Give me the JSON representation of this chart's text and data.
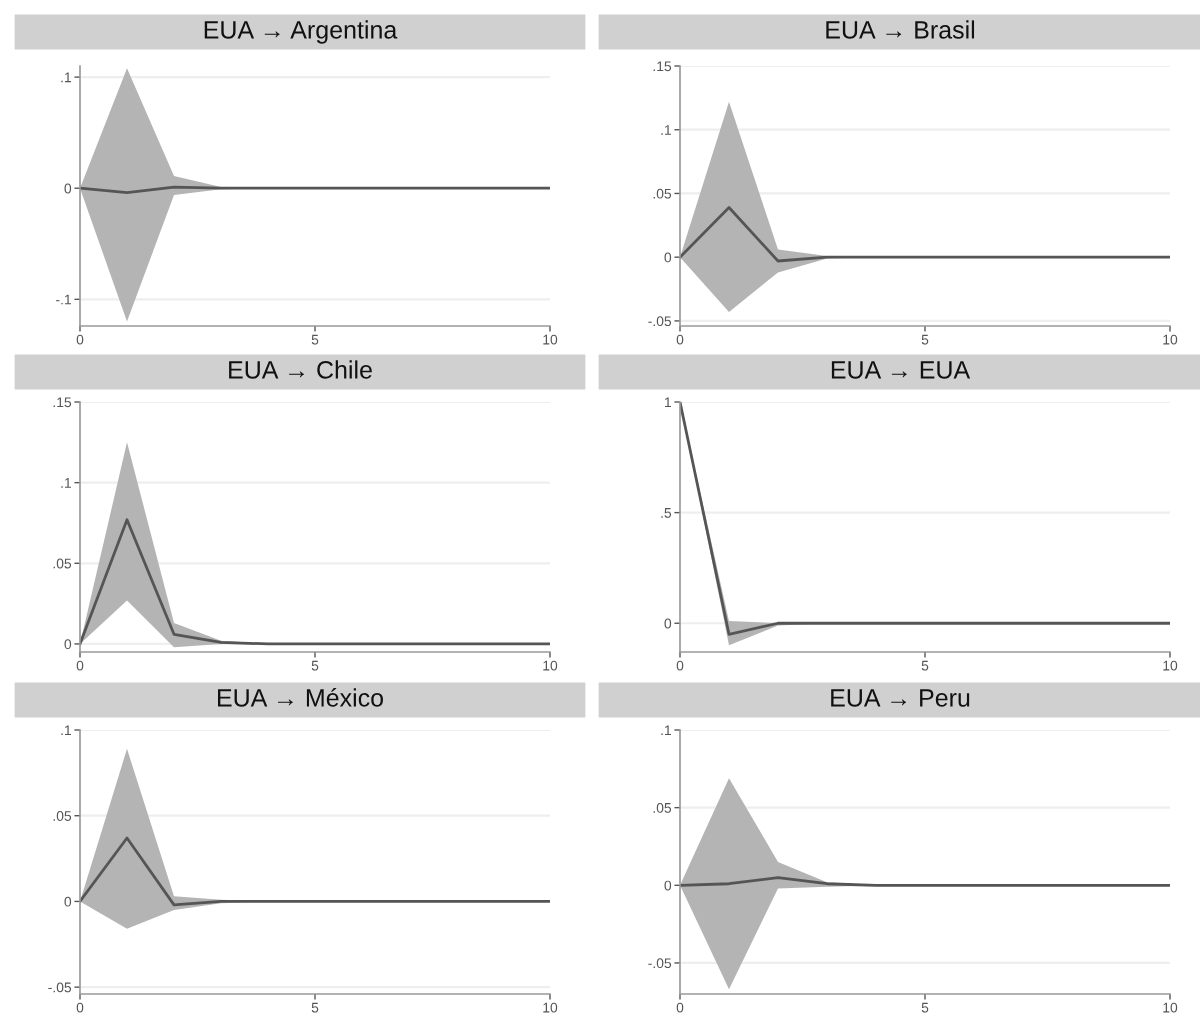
{
  "chart_data": [
    {
      "type": "line",
      "title": "EUA → Argentina",
      "x": [
        0,
        1,
        2,
        3,
        4,
        5,
        6,
        7,
        8,
        9,
        10
      ],
      "xlim": [
        0,
        10
      ],
      "xticks": [
        0,
        5,
        10
      ],
      "ylim": [
        -0.124,
        0.11
      ],
      "yticks": [
        {
          "value": 0.1,
          "label": ".1"
        },
        0,
        {
          "value": -0.1,
          "label": "-.1"
        }
      ],
      "grid": "y",
      "series": [
        {
          "color": "#555555",
          "values": [
            0,
            -0.004,
            0.001,
            0,
            0,
            0,
            0,
            0,
            0,
            0,
            0
          ],
          "lower": [
            0,
            -0.12,
            -0.006,
            -0.001,
            0,
            0,
            0,
            0,
            0,
            0,
            0
          ],
          "upper": [
            0,
            0.108,
            0.011,
            0.001,
            0,
            0,
            0,
            0,
            0,
            0,
            0
          ]
        }
      ]
    },
    {
      "type": "line",
      "title": "EUA → Brasil",
      "x": [
        0,
        1,
        2,
        3,
        4,
        5,
        6,
        7,
        8,
        9,
        10
      ],
      "xlim": [
        0,
        10
      ],
      "xticks": [
        0,
        5,
        10
      ],
      "ylim": [
        -0.054,
        0.15
      ],
      "yticks": [
        {
          "value": -0.05,
          "label": "-.05"
        },
        0,
        {
          "value": 0.05,
          "label": ".05"
        },
        {
          "value": 0.1,
          "label": ".1"
        },
        {
          "value": 0.15,
          "label": ".15"
        }
      ],
      "grid": "y",
      "series": [
        {
          "color": "#555555",
          "values": [
            0,
            0.039,
            -0.003,
            0,
            0,
            0,
            0,
            0,
            0,
            0,
            0
          ],
          "lower": [
            0,
            -0.043,
            -0.012,
            -0.001,
            0,
            0,
            0,
            0,
            0,
            0,
            0
          ],
          "upper": [
            0,
            0.122,
            0.006,
            0.001,
            0,
            0,
            0,
            0,
            0,
            0,
            0
          ]
        }
      ]
    },
    {
      "type": "line",
      "title": "EUA → Chile",
      "x": [
        0,
        1,
        2,
        3,
        4,
        5,
        6,
        7,
        8,
        9,
        10
      ],
      "xlim": [
        0,
        10
      ],
      "xticks": [
        0,
        5,
        10
      ],
      "ylim": [
        -0.005,
        0.15
      ],
      "yticks": [
        0,
        {
          "value": 0.05,
          "label": ".05"
        },
        {
          "value": 0.1,
          "label": ".1"
        },
        {
          "value": 0.15,
          "label": ".15"
        }
      ],
      "grid": "y",
      "series": [
        {
          "color": "#555555",
          "values": [
            0,
            0.077,
            0.006,
            0.001,
            0,
            0,
            0,
            0,
            0,
            0,
            0
          ],
          "lower": [
            0,
            0.027,
            -0.002,
            0,
            0,
            0,
            0,
            0,
            0,
            0,
            0
          ],
          "upper": [
            0,
            0.125,
            0.013,
            0.002,
            0,
            0,
            0,
            0,
            0,
            0,
            0
          ]
        }
      ]
    },
    {
      "type": "line",
      "title": "EUA → EUA",
      "x": [
        0,
        1,
        2,
        3,
        4,
        5,
        6,
        7,
        8,
        9,
        10
      ],
      "xlim": [
        0,
        10
      ],
      "xticks": [
        0,
        5,
        10
      ],
      "ylim": [
        -0.13,
        1
      ],
      "yticks": [
        0,
        {
          "value": 0.5,
          "label": ".5"
        },
        1
      ],
      "grid": "y",
      "series": [
        {
          "color": "#555555",
          "values": [
            1,
            -0.05,
            0,
            0,
            0,
            0,
            0,
            0,
            0,
            0,
            0
          ],
          "lower": [
            1,
            -0.1,
            -0.01,
            0,
            0,
            0,
            0,
            0,
            0,
            0,
            0
          ],
          "upper": [
            1,
            0.01,
            0,
            0,
            0,
            0,
            0,
            0,
            0,
            0,
            0
          ]
        }
      ]
    },
    {
      "type": "line",
      "title": "EUA → México",
      "x": [
        0,
        1,
        2,
        3,
        4,
        5,
        6,
        7,
        8,
        9,
        10
      ],
      "xlim": [
        0,
        10
      ],
      "xticks": [
        0,
        5,
        10
      ],
      "ylim": [
        -0.054,
        0.1
      ],
      "yticks": [
        {
          "value": -0.05,
          "label": "-.05"
        },
        0,
        {
          "value": 0.05,
          "label": ".05"
        },
        {
          "value": 0.1,
          "label": ".1"
        }
      ],
      "grid": "y",
      "series": [
        {
          "color": "#555555",
          "values": [
            0,
            0.037,
            -0.002,
            0,
            0,
            0,
            0,
            0,
            0,
            0,
            0
          ],
          "lower": [
            0,
            -0.016,
            -0.005,
            -0.001,
            0,
            0,
            0,
            0,
            0,
            0,
            0
          ],
          "upper": [
            0,
            0.089,
            0.003,
            0.001,
            0,
            0,
            0,
            0,
            0,
            0,
            0
          ]
        }
      ]
    },
    {
      "type": "line",
      "title": "EUA → Peru",
      "x": [
        0,
        1,
        2,
        3,
        4,
        5,
        6,
        7,
        8,
        9,
        10
      ],
      "xlim": [
        0,
        10
      ],
      "xticks": [
        0,
        5,
        10
      ],
      "ylim": [
        -0.07,
        0.1
      ],
      "yticks": [
        {
          "value": -0.05,
          "label": "-.05"
        },
        0,
        {
          "value": 0.05,
          "label": ".05"
        },
        {
          "value": 0.1,
          "label": ".1"
        }
      ],
      "grid": "y",
      "series": [
        {
          "color": "#555555",
          "values": [
            0,
            0.001,
            0.005,
            0.001,
            0,
            0,
            0,
            0,
            0,
            0,
            0
          ],
          "lower": [
            0,
            -0.067,
            -0.002,
            -0.001,
            0,
            0,
            0,
            0,
            0,
            0,
            0
          ],
          "upper": [
            0,
            0.069,
            0.015,
            0.002,
            0,
            0,
            0,
            0,
            0,
            0,
            0
          ]
        }
      ]
    }
  ]
}
